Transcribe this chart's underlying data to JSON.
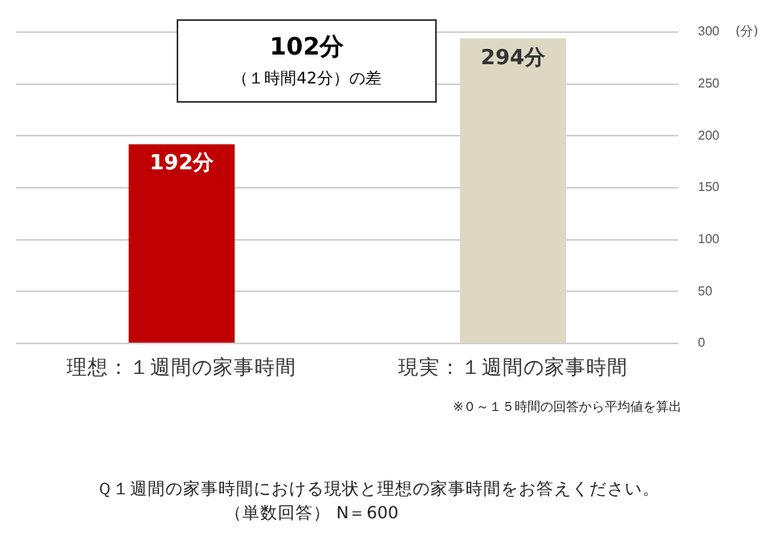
{
  "chart_data": {
    "type": "bar",
    "categories": [
      "理想：１週間の家事時間",
      "現実：１週間の家事時間"
    ],
    "values": [
      192,
      294
    ],
    "colors": [
      "#c00000",
      "#ddd8c4"
    ],
    "value_labels": [
      "192分",
      "294分"
    ],
    "ylabel": "(分)",
    "ylim": [
      0,
      300
    ],
    "yticks": [
      0,
      50,
      100,
      150,
      200,
      250,
      300
    ],
    "grid": "y",
    "legend": false,
    "annotations": [
      "102分",
      "（１時間42分）の差",
      "※０～１５時間の回答から平均値を算出",
      "Ｑ１週間の家事時間における現状と理想の家事時間をお答えください。",
      "（単数回答） N＝600"
    ]
  }
}
